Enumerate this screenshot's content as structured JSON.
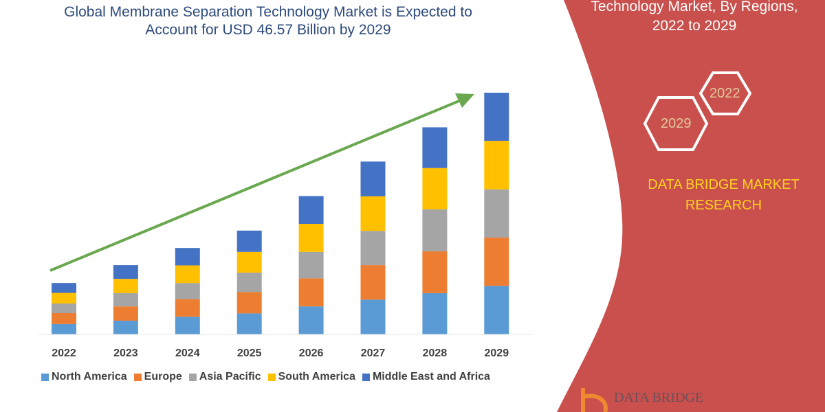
{
  "header": {
    "title_line1": "Global Membrane Separation Technology Market is Expected to",
    "title_line2": "Account for USD 46.57 Billion by 2029"
  },
  "side_panel": {
    "title_line1": "Technology Market, By Regions,",
    "title_line2": "2022 to 2029",
    "hex_a": "2022",
    "hex_b": "2029",
    "brand_line1": "DATA BRIDGE MARKET",
    "brand_line2": "RESEARCH",
    "logo_text": "DATA BRIDGE",
    "color": "#c9504d"
  },
  "chart_data": {
    "type": "bar",
    "stacked": true,
    "title": "",
    "xlabel": "",
    "ylabel": "",
    "ylim": [
      0,
      46.57
    ],
    "grid": false,
    "legend": "bottom",
    "categories": [
      "2022",
      "2023",
      "2024",
      "2025",
      "2026",
      "2027",
      "2028",
      "2029"
    ],
    "series": [
      {
        "name": "North America",
        "color": "#5b9bd5",
        "values": [
          2.0,
          2.65,
          3.4,
          4.05,
          5.4,
          6.7,
          7.95,
          9.35
        ]
      },
      {
        "name": "Europe",
        "color": "#ed7d31",
        "values": [
          2.1,
          2.75,
          3.4,
          4.1,
          5.4,
          6.65,
          8.05,
          9.3
        ]
      },
      {
        "name": "Asia Pacific",
        "color": "#a5a5a5",
        "values": [
          1.85,
          2.55,
          3.1,
          3.75,
          5.1,
          6.6,
          8.1,
          9.3
        ]
      },
      {
        "name": "South America",
        "color": "#ffc000",
        "values": [
          2.05,
          2.75,
          3.4,
          4.0,
          5.4,
          6.65,
          7.95,
          9.35
        ]
      },
      {
        "name": "Middle East and Africa",
        "color": "#4472c4",
        "values": [
          1.9,
          2.65,
          3.35,
          4.1,
          5.35,
          6.7,
          7.85,
          9.27
        ]
      }
    ],
    "trend_arrow_color": "#6aa84f"
  }
}
